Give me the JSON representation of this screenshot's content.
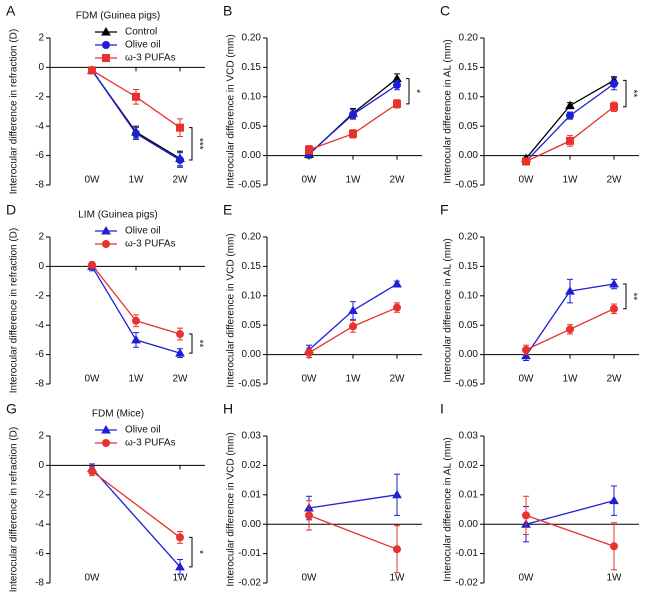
{
  "chart_data": [
    {
      "type": "line",
      "panel": "A",
      "title": "FDM (Guinea pigs)",
      "ylabel": "Interocular difference in refraction (D)",
      "categories": [
        "0W",
        "1W",
        "2W"
      ],
      "ylim": [
        -8,
        2
      ],
      "yticks": [
        -8,
        -6,
        -4,
        -2,
        0,
        2
      ],
      "legend": "top-right",
      "series": [
        {
          "name": "Control",
          "color": "#000000",
          "marker": "triangle",
          "values": [
            -0.2,
            -4.4,
            -6.2
          ],
          "errors": [
            0.2,
            0.4,
            0.5
          ]
        },
        {
          "name": "Olive oil",
          "color": "#1f1fd6",
          "marker": "circle",
          "values": [
            -0.2,
            -4.5,
            -6.3
          ],
          "errors": [
            0.2,
            0.4,
            0.5
          ]
        },
        {
          "name": "ω-3 PUFAs",
          "color": "#e8322d",
          "marker": "square",
          "values": [
            -0.2,
            -2.0,
            -4.1
          ],
          "errors": [
            0.2,
            0.5,
            0.6
          ]
        }
      ],
      "significance": "***"
    },
    {
      "type": "line",
      "panel": "B",
      "ylabel": "Interocular difference in VCD (mm)",
      "categories": [
        "0W",
        "1W",
        "2W"
      ],
      "ylim": [
        -0.05,
        0.2
      ],
      "yticks": [
        {
          "value": -0.05,
          "label": "-0.05"
        },
        {
          "value": 0,
          "label": "0.00"
        },
        {
          "value": 0.05,
          "label": "0.05"
        },
        {
          "value": 0.1,
          "label": "0.10"
        },
        {
          "value": 0.15,
          "label": "0.15"
        },
        {
          "value": 0.2,
          "label": "0.20"
        }
      ],
      "series": [
        {
          "color": "#000000",
          "marker": "triangle",
          "values": [
            0.002,
            0.072,
            0.131
          ],
          "errors": [
            0.006,
            0.008,
            0.008
          ]
        },
        {
          "color": "#1f1fd6",
          "marker": "circle",
          "values": [
            0.003,
            0.07,
            0.12
          ],
          "errors": [
            0.006,
            0.008,
            0.008
          ]
        },
        {
          "color": "#e8322d",
          "marker": "square",
          "values": [
            0.01,
            0.037,
            0.088
          ],
          "errors": [
            0.007,
            0.007,
            0.007
          ]
        }
      ],
      "significance": "*"
    },
    {
      "type": "line",
      "panel": "C",
      "ylabel": "Interocular difference in AL (mm)",
      "categories": [
        "0W",
        "1W",
        "2W"
      ],
      "ylim": [
        -0.05,
        0.2
      ],
      "yticks": [
        {
          "value": -0.05,
          "label": "-0.05"
        },
        {
          "value": 0,
          "label": "0.00"
        },
        {
          "value": 0.05,
          "label": "0.05"
        },
        {
          "value": 0.1,
          "label": "0.10"
        },
        {
          "value": 0.15,
          "label": "0.15"
        },
        {
          "value": 0.2,
          "label": "0.20"
        }
      ],
      "series": [
        {
          "color": "#000000",
          "marker": "triangle",
          "values": [
            -0.005,
            0.085,
            0.128
          ],
          "errors": [
            0.005,
            0.005,
            0.006
          ]
        },
        {
          "color": "#1f1fd6",
          "marker": "circle",
          "values": [
            -0.01,
            0.068,
            0.122
          ],
          "errors": [
            0.006,
            0.006,
            0.01
          ]
        },
        {
          "color": "#e8322d",
          "marker": "square",
          "values": [
            -0.01,
            0.025,
            0.083
          ],
          "errors": [
            0.006,
            0.009,
            0.008
          ]
        }
      ],
      "significance": "**"
    },
    {
      "type": "line",
      "panel": "D",
      "title": "LIM (Guinea pigs)",
      "ylabel": "Interocular difference in refraction (D)",
      "categories": [
        "0W",
        "1W",
        "2W"
      ],
      "ylim": [
        -8,
        2
      ],
      "yticks": [
        -8,
        -6,
        -4,
        -2,
        0,
        2
      ],
      "legend": "top-right",
      "series": [
        {
          "name": "Olive oil",
          "color": "#1f1fd6",
          "marker": "triangle",
          "values": [
            0,
            -5.0,
            -5.9
          ],
          "errors": [
            0.3,
            0.5,
            0.3
          ]
        },
        {
          "name": "ω-3 PUFAs",
          "color": "#e8322d",
          "marker": "circle",
          "values": [
            0.1,
            -3.7,
            -4.6
          ],
          "errors": [
            0.2,
            0.4,
            0.4
          ]
        }
      ],
      "significance": "**"
    },
    {
      "type": "line",
      "panel": "E",
      "ylabel": "Interocular difference in VCD (mm)",
      "categories": [
        "0W",
        "1W",
        "2W"
      ],
      "ylim": [
        -0.05,
        0.2
      ],
      "yticks": [
        {
          "value": -0.05,
          "label": "-0.05"
        },
        {
          "value": 0,
          "label": "0.00"
        },
        {
          "value": 0.05,
          "label": "0.05"
        },
        {
          "value": 0.1,
          "label": "0.10"
        },
        {
          "value": 0.15,
          "label": "0.15"
        },
        {
          "value": 0.2,
          "label": "0.20"
        }
      ],
      "series": [
        {
          "color": "#1f1fd6",
          "marker": "triangle",
          "values": [
            0.008,
            0.075,
            0.12
          ],
          "errors": [
            0.008,
            0.015,
            0.005
          ]
        },
        {
          "color": "#e8322d",
          "marker": "circle",
          "values": [
            0.003,
            0.048,
            0.08
          ],
          "errors": [
            0.008,
            0.01,
            0.008
          ]
        }
      ]
    },
    {
      "type": "line",
      "panel": "F",
      "ylabel": "Interocular difference in AL (mm)",
      "categories": [
        "0W",
        "1W",
        "2W"
      ],
      "ylim": [
        -0.05,
        0.2
      ],
      "yticks": [
        {
          "value": -0.05,
          "label": "-0.05"
        },
        {
          "value": 0,
          "label": "0.00"
        },
        {
          "value": 0.05,
          "label": "0.05"
        },
        {
          "value": 0.1,
          "label": "0.10"
        },
        {
          "value": 0.15,
          "label": "0.15"
        },
        {
          "value": 0.2,
          "label": "0.20"
        }
      ],
      "series": [
        {
          "color": "#1f1fd6",
          "marker": "triangle",
          "values": [
            -0.002,
            0.108,
            0.12
          ],
          "errors": [
            0.008,
            0.02,
            0.008
          ]
        },
        {
          "color": "#e8322d",
          "marker": "circle",
          "values": [
            0.008,
            0.043,
            0.078
          ],
          "errors": [
            0.008,
            0.008,
            0.008
          ]
        }
      ],
      "significance": "**"
    },
    {
      "type": "line",
      "panel": "G",
      "title": "FDM (Mice)",
      "ylabel": "Interocular difference in refraction (D)",
      "categories": [
        "0W",
        "1W"
      ],
      "ylim": [
        -8,
        2
      ],
      "yticks": [
        -8,
        -6,
        -4,
        -2,
        0,
        2
      ],
      "legend": "top-right",
      "series": [
        {
          "name": "Olive oil",
          "color": "#1f1fd6",
          "marker": "triangle",
          "values": [
            -0.2,
            -6.9
          ],
          "errors": [
            0.3,
            0.5
          ]
        },
        {
          "name": "ω-3 PUFAs",
          "color": "#e8322d",
          "marker": "circle",
          "values": [
            -0.4,
            -4.9
          ],
          "errors": [
            0.3,
            0.4
          ]
        }
      ],
      "significance": "*"
    },
    {
      "type": "line",
      "panel": "H",
      "ylabel": "Interocular difference in VCD (mm)",
      "categories": [
        "0W",
        "1W"
      ],
      "ylim": [
        -0.02,
        0.03
      ],
      "yticks": [
        {
          "value": -0.02,
          "label": "-0.02"
        },
        {
          "value": -0.01,
          "label": "-0.01"
        },
        {
          "value": 0,
          "label": "0.00"
        },
        {
          "value": 0.01,
          "label": "0.01"
        },
        {
          "value": 0.02,
          "label": "0.02"
        },
        {
          "value": 0.03,
          "label": "0.03"
        }
      ],
      "series": [
        {
          "color": "#1f1fd6",
          "marker": "triangle",
          "values": [
            0.0055,
            0.01
          ],
          "errors": [
            0.004,
            0.007
          ]
        },
        {
          "color": "#e8322d",
          "marker": "circle",
          "values": [
            0.003,
            -0.0085
          ],
          "errors": [
            0.005,
            0.008
          ]
        }
      ]
    },
    {
      "type": "line",
      "panel": "I",
      "ylabel": "Interocular difference in AL (mm)",
      "categories": [
        "0W",
        "1W"
      ],
      "ylim": [
        -0.02,
        0.03
      ],
      "yticks": [
        {
          "value": -0.02,
          "label": "-0.02"
        },
        {
          "value": -0.01,
          "label": "-0.01"
        },
        {
          "value": 0,
          "label": "0.00"
        },
        {
          "value": 0.01,
          "label": "0.01"
        },
        {
          "value": 0.02,
          "label": "0.02"
        },
        {
          "value": 0.03,
          "label": "0.03"
        }
      ],
      "series": [
        {
          "color": "#1f1fd6",
          "marker": "triangle",
          "values": [
            0,
            0.008
          ],
          "errors": [
            0.006,
            0.005
          ]
        },
        {
          "color": "#e8322d",
          "marker": "circle",
          "values": [
            0.003,
            -0.0075
          ],
          "errors": [
            0.0065,
            0.008
          ]
        }
      ]
    }
  ]
}
